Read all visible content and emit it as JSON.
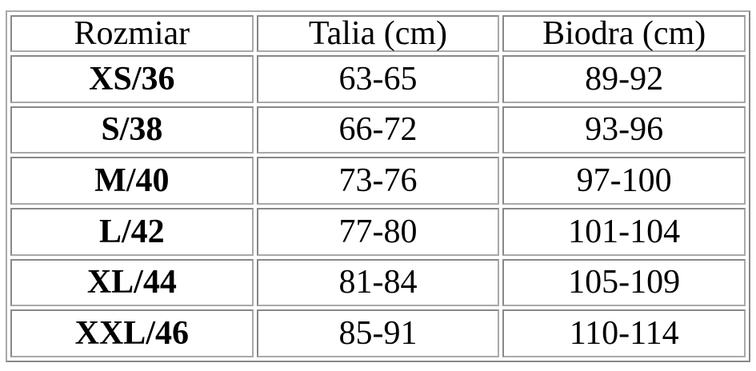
{
  "table": {
    "headers": [
      "Rozmiar",
      "Talia (cm)",
      "Biodra (cm)"
    ],
    "rows": [
      [
        "XS/36",
        "63-65",
        "89-92"
      ],
      [
        "S/38",
        "66-72",
        "93-96"
      ],
      [
        "M/40",
        "73-76",
        "97-100"
      ],
      [
        "L/42",
        "77-80",
        "101-104"
      ],
      [
        "XL/44",
        "81-84",
        "105-109"
      ],
      [
        "XXL/46",
        "85-91",
        "110-114"
      ]
    ]
  }
}
